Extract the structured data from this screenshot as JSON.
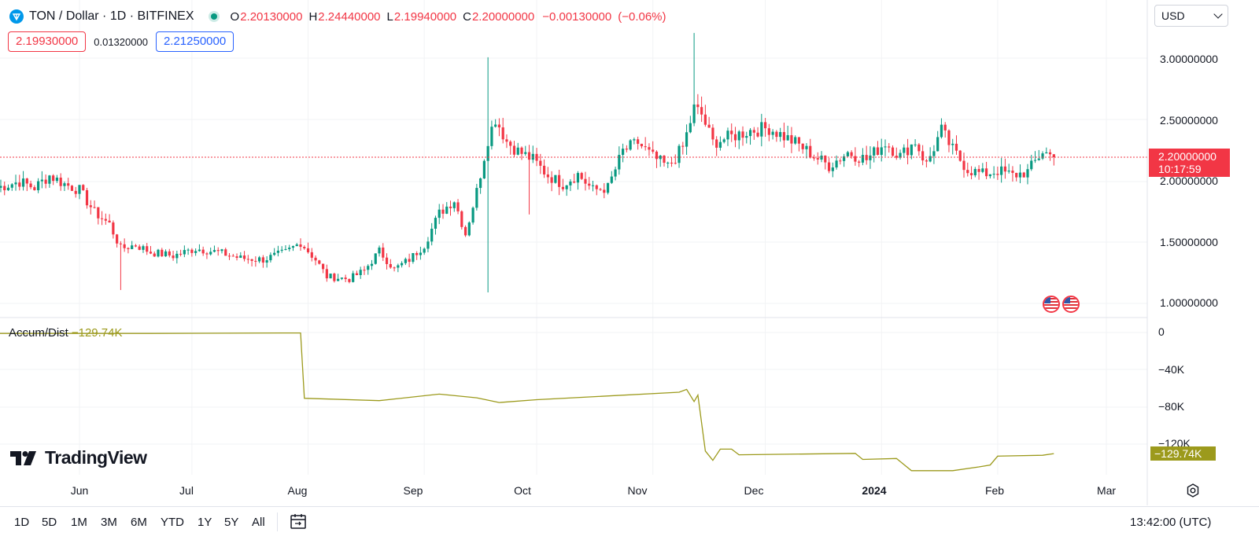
{
  "header": {
    "symbol": "TON / Dollar · 1D · BITFINEX",
    "open_key": "O",
    "open": "2.20130000",
    "high_key": "H",
    "high": "2.24440000",
    "low_key": "L",
    "low": "2.19940000",
    "close_key": "C",
    "close": "2.20000000",
    "change": "−0.00130000",
    "change_pct": "(−0.06%)",
    "sell_price": "2.19930000",
    "spread": "0.01320000",
    "buy_price": "2.21250000",
    "currency": "USD"
  },
  "colors": {
    "up": "#089981",
    "down": "#f23645",
    "indicator": "#9c9a1c",
    "buy": "#2962ff"
  },
  "icons": {
    "logo": "ton-logo-icon",
    "status": "live-dot-icon",
    "currency_chevron": "chevron-down-icon",
    "settings": "gear-icon",
    "date_range": "calendar-range-icon",
    "events": "us-flag-icon"
  },
  "price_axis": [
    "3.00000000",
    "2.50000000",
    "2.00000000",
    "1.50000000",
    "1.00000000"
  ],
  "last_price": {
    "value": "2.20000000",
    "countdown": "10:17:59"
  },
  "indicator": {
    "name": "Accum/Dist",
    "value": "−129.74K",
    "axis": [
      "0",
      "−40K",
      "−80K",
      "−120K"
    ]
  },
  "time_axis": [
    "Jun",
    "Jul",
    "Aug",
    "Sep",
    "Oct",
    "Nov",
    "Dec",
    "2024",
    "Feb",
    "Mar"
  ],
  "logo_text": "TradingView",
  "ranges": [
    "1D",
    "5D",
    "1M",
    "3M",
    "6M",
    "YTD",
    "1Y",
    "5Y",
    "All"
  ],
  "clock": "13:42:00 (UTC)",
  "chart_data": {
    "type": "candlestick",
    "interval": "1D",
    "ylim": [
      0.95,
      3.22
    ],
    "price_path": [
      [
        "2023-05-10",
        1.95
      ],
      [
        "2023-05-16",
        2.0
      ],
      [
        "2023-05-20",
        1.95
      ],
      [
        "2023-05-24",
        2.05
      ],
      [
        "2023-05-28",
        1.98
      ],
      [
        "2023-06-01",
        1.93
      ],
      [
        "2023-06-05",
        1.75
      ],
      [
        "2023-06-09",
        1.65
      ],
      [
        "2023-06-12",
        1.45
      ],
      [
        "2023-06-16",
        1.48
      ],
      [
        "2023-06-20",
        1.42
      ],
      [
        "2023-06-26",
        1.39
      ],
      [
        "2023-07-02",
        1.45
      ],
      [
        "2023-07-08",
        1.42
      ],
      [
        "2023-07-14",
        1.37
      ],
      [
        "2023-07-20",
        1.36
      ],
      [
        "2023-07-26",
        1.42
      ],
      [
        "2023-07-30",
        1.5
      ],
      [
        "2023-08-03",
        1.36
      ],
      [
        "2023-08-06",
        1.22
      ],
      [
        "2023-08-12",
        1.2
      ],
      [
        "2023-08-16",
        1.27
      ],
      [
        "2023-08-20",
        1.43
      ],
      [
        "2023-08-24",
        1.28
      ],
      [
        "2023-08-28",
        1.36
      ],
      [
        "2023-09-01",
        1.48
      ],
      [
        "2023-09-05",
        1.74
      ],
      [
        "2023-09-09",
        1.85
      ],
      [
        "2023-09-12",
        1.57
      ],
      [
        "2023-09-15",
        1.92
      ],
      [
        "2023-09-18",
        2.35
      ],
      [
        "2023-09-20",
        2.52
      ],
      [
        "2023-09-23",
        2.33
      ],
      [
        "2023-09-26",
        2.25
      ],
      [
        "2023-09-30",
        2.18
      ],
      [
        "2023-10-04",
        2.05
      ],
      [
        "2023-10-08",
        1.98
      ],
      [
        "2023-10-12",
        2.06
      ],
      [
        "2023-10-16",
        1.93
      ],
      [
        "2023-10-20",
        1.95
      ],
      [
        "2023-10-24",
        2.25
      ],
      [
        "2023-10-28",
        2.32
      ],
      [
        "2023-11-01",
        2.2
      ],
      [
        "2023-11-05",
        2.12
      ],
      [
        "2023-11-09",
        2.28
      ],
      [
        "2023-11-12",
        2.6
      ],
      [
        "2023-11-14",
        2.55
      ],
      [
        "2023-11-17",
        2.32
      ],
      [
        "2023-11-21",
        2.36
      ],
      [
        "2023-11-27",
        2.42
      ],
      [
        "2023-12-02",
        2.44
      ],
      [
        "2023-12-06",
        2.37
      ],
      [
        "2023-12-10",
        2.3
      ],
      [
        "2023-12-14",
        2.21
      ],
      [
        "2023-12-18",
        2.13
      ],
      [
        "2023-12-23",
        2.24
      ],
      [
        "2023-12-28",
        2.18
      ],
      [
        "2024-01-02",
        2.32
      ],
      [
        "2024-01-06",
        2.21
      ],
      [
        "2024-01-10",
        2.33
      ],
      [
        "2024-01-13",
        2.14
      ],
      [
        "2024-01-17",
        2.42
      ],
      [
        "2024-01-20",
        2.26
      ],
      [
        "2024-01-24",
        2.1
      ],
      [
        "2024-01-28",
        2.06
      ],
      [
        "2024-02-01",
        2.09
      ],
      [
        "2024-02-05",
        2.05
      ],
      [
        "2024-02-09",
        2.08
      ],
      [
        "2024-02-13",
        2.25
      ],
      [
        "2024-02-16",
        2.2
      ]
    ],
    "wick_extremes": [
      {
        "date": "2023-06-12",
        "low": 1.11
      },
      {
        "date": "2023-09-18",
        "high": 3.02,
        "low": 1.09
      },
      {
        "date": "2023-09-29",
        "low": 1.73
      },
      {
        "date": "2023-11-12",
        "high": 3.22
      }
    ],
    "accum_dist": [
      [
        "2023-05-10",
        -1
      ],
      [
        "2023-06-20",
        -1
      ],
      [
        "2023-07-25",
        -0.5
      ],
      [
        "2023-07-30",
        -0.5
      ],
      [
        "2023-07-31",
        -70.5
      ],
      [
        "2023-08-20",
        -73
      ],
      [
        "2023-09-05",
        -66
      ],
      [
        "2023-09-15",
        -70
      ],
      [
        "2023-09-21",
        -75
      ],
      [
        "2023-10-01",
        -72
      ],
      [
        "2023-11-08",
        -64
      ],
      [
        "2023-11-10",
        -61
      ],
      [
        "2023-11-12",
        -74
      ],
      [
        "2023-11-13",
        -67
      ],
      [
        "2023-11-15",
        -127
      ],
      [
        "2023-11-17",
        -137
      ],
      [
        "2023-11-19",
        -125
      ],
      [
        "2023-11-22",
        -125
      ],
      [
        "2023-11-24",
        -131
      ],
      [
        "2023-12-25",
        -129.5
      ],
      [
        "2023-12-27",
        -136
      ],
      [
        "2024-01-05",
        -135
      ],
      [
        "2024-01-09",
        -148
      ],
      [
        "2024-01-20",
        -148
      ],
      [
        "2024-01-27",
        -144
      ],
      [
        "2024-01-30",
        -142
      ],
      [
        "2024-02-01",
        -132.5
      ],
      [
        "2024-02-13",
        -131.5
      ],
      [
        "2024-02-16",
        -129.74
      ]
    ]
  }
}
